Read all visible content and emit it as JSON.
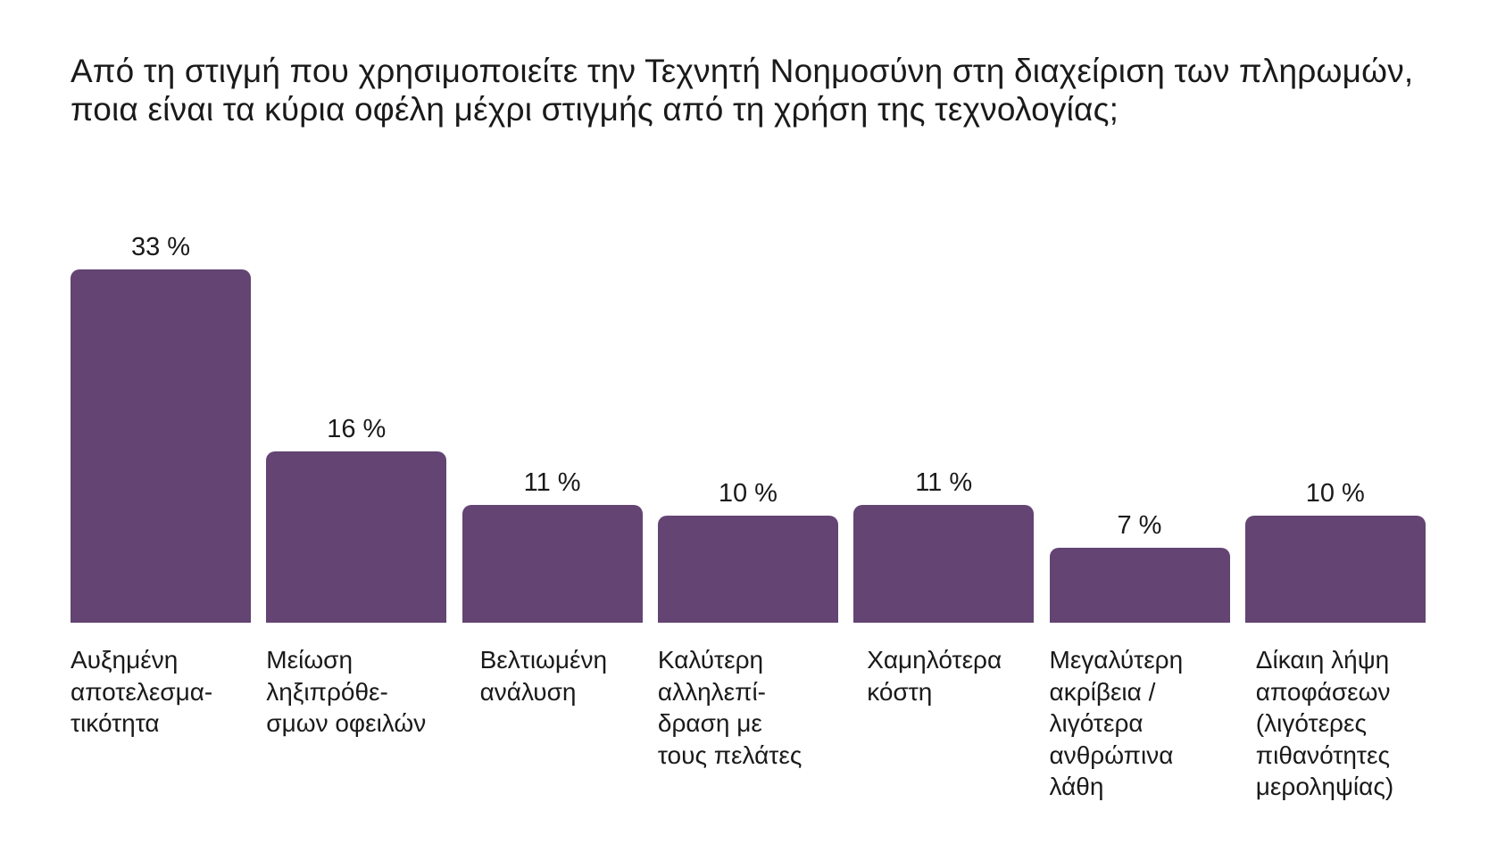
{
  "title": "Από τη στιγμή που χρησιμοποιείτε την Τεχνητή Νοημοσύνη στη διαχείριση των πληρωμών, ποια είναι τα κύρια οφέλη μέχρι στιγμής από τη χρήση της τεχνολογίας;",
  "colors": {
    "bar": "#634473",
    "text": "#1a1a1a",
    "background": "#ffffff"
  },
  "chart_data": {
    "type": "bar",
    "title": "Από τη στιγμή που χρησιμοποιείτε την Τεχνητή Νοημοσύνη στη διαχείριση των πληρωμών, ποια είναι τα κύρια οφέλη μέχρι στιγμής από τη χρήση της τεχνολογίας;",
    "categories": [
      "Αυξημένη\nαποτελεσμα-\nτικότητα",
      "Μείωση\nληξιπρόθε-\nσμων οφειλών",
      "Βελτιωμένη\nανάλυση",
      "Καλύτερη\nαλληλεπί-\nδραση με\nτους πελάτες",
      "Χαμηλότερα\nκόστη",
      "Μεγαλύτερη\nακρίβεια /\nλιγότερα\nανθρώπινα\nλάθη",
      "Δίκαιη λήψη\nαποφάσεων\n(λιγότερες\nπιθανότητες\nμεροληψίας)"
    ],
    "values": [
      33,
      16,
      11,
      10,
      11,
      7,
      10
    ],
    "value_labels": [
      "33 %",
      "16 %",
      "11 %",
      "10 %",
      "11 %",
      "7 %",
      "10 %"
    ],
    "xlabel": "",
    "ylabel": "",
    "ylim": [
      0,
      33
    ],
    "grid": false,
    "legend": "none"
  }
}
